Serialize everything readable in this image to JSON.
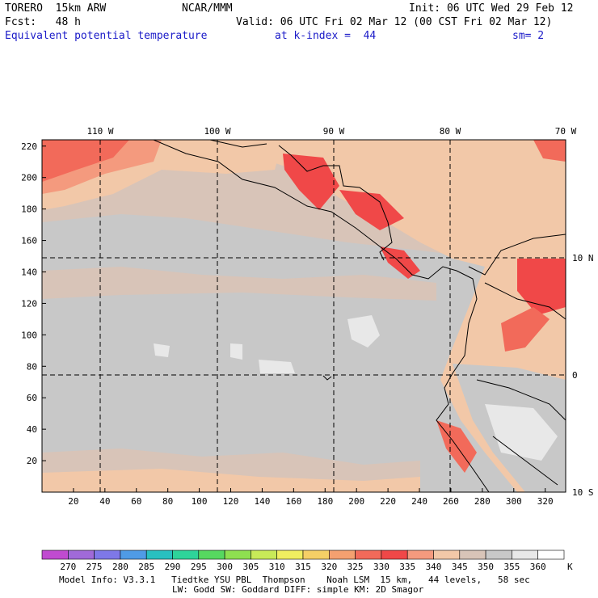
{
  "header": {
    "model": "TORERO  15km ARW",
    "center": "NCAR/MMM",
    "init": "Init: 06 UTC Wed 29 Feb 12",
    "fcst": "Fcst:   48 h",
    "valid": "Valid: 06 UTC Fri 02 Mar 12 (00 CST Fri 02 Mar 12)",
    "field": "Equivalent potential temperature",
    "level": "at k-index =  44",
    "smooth": "sm= 2"
  },
  "map": {
    "lon_labels": [
      "110 W",
      "100 W",
      "90 W",
      "80 W",
      "70 W"
    ],
    "lat_labels": [
      "10 N",
      "0",
      "10 S"
    ],
    "x_ticks": [
      "20",
      "40",
      "60",
      "80",
      "100",
      "120",
      "140",
      "160",
      "180",
      "200",
      "220",
      "240",
      "260",
      "280",
      "300",
      "320"
    ],
    "y_ticks": [
      "20",
      "40",
      "60",
      "80",
      "100",
      "120",
      "140",
      "160",
      "180",
      "200",
      "220"
    ]
  },
  "colorbar": {
    "labels": [
      "270",
      "275",
      "280",
      "285",
      "290",
      "295",
      "300",
      "305",
      "310",
      "315",
      "320",
      "325",
      "330",
      "335",
      "340",
      "345",
      "350",
      "355",
      "360"
    ],
    "unit": "K",
    "colors": [
      "#c04bd0",
      "#a06ad8",
      "#7e78e8",
      "#4f9be6",
      "#28c0c0",
      "#2ed49a",
      "#56d860",
      "#8ee050",
      "#c8ea58",
      "#f0ee60",
      "#f5cf66",
      "#f4a070",
      "#f26a5a",
      "#f04848",
      "#f49a7e",
      "#f2c8a8",
      "#d8c4b8",
      "#c8c8c8",
      "#e8e8e8",
      "#ffffff"
    ]
  },
  "footer": {
    "line1": "Model Info: V3.3.1   Tiedtke YSU PBL  Thompson    Noah LSM  15 km,   44 levels,   58 sec",
    "line2": "LW: Godd SW: Goddard DIFF: simple KM: 2D Smagor"
  }
}
